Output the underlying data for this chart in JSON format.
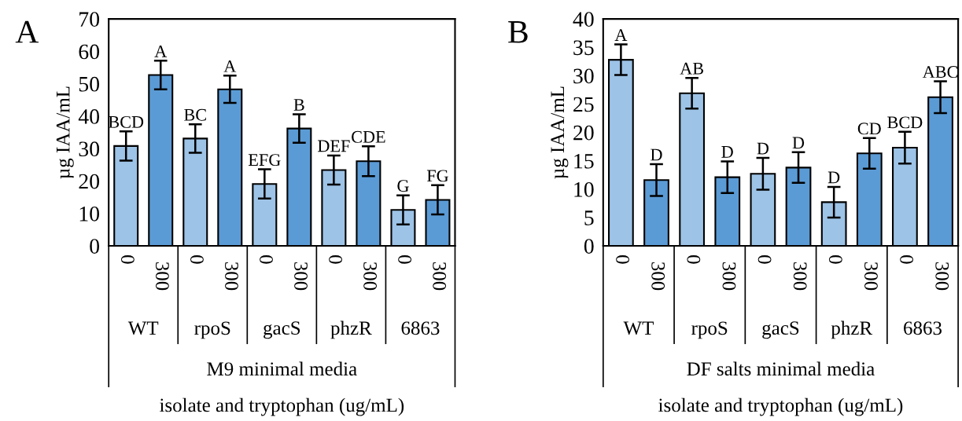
{
  "chart_data": [
    {
      "type": "bar",
      "title": "A",
      "ylabel": "µg IAA/mL",
      "xlabel": "isolate and tryptophan (ug/mL)",
      "categories": [
        "0",
        "300",
        "0",
        "300",
        "0",
        "300",
        "0",
        "300",
        "0",
        "300"
      ],
      "values": [
        30.8,
        52.7,
        33.1,
        48.3,
        19.1,
        36.2,
        23.4,
        26.1,
        11.1,
        14.2
      ],
      "errors": [
        4.5,
        4.4,
        4.4,
        4.2,
        4.5,
        4.4,
        4.5,
        4.6,
        4.5,
        4.5
      ],
      "colors": [
        "#9dc3e6",
        "#5b9bd5",
        "#9dc3e6",
        "#5b9bd5",
        "#9dc3e6",
        "#5b9bd5",
        "#9dc3e6",
        "#5b9bd5",
        "#9dc3e6",
        "#5b9bd5"
      ],
      "value_labels": [
        "BCD",
        "A",
        "BC",
        "A",
        "EFG",
        "B",
        "DEF",
        "CDE",
        "G",
        "FG"
      ],
      "annotations": [
        "WT",
        "rpoS",
        "gacS",
        "phzR",
        "6863",
        "M9 minimal media"
      ],
      "ylim": [
        0,
        70
      ],
      "yticks": [
        0,
        10,
        20,
        30,
        40,
        50,
        60,
        70
      ],
      "grid": false,
      "legend": false
    },
    {
      "type": "bar",
      "title": "B",
      "ylabel": "µg IAA/mL",
      "xlabel": "isolate and tryptophan (ug/mL)",
      "categories": [
        "0",
        "300",
        "0",
        "300",
        "0",
        "300",
        "0",
        "300",
        "0",
        "300"
      ],
      "values": [
        32.8,
        11.6,
        26.9,
        12.1,
        12.7,
        13.8,
        7.7,
        16.3,
        17.3,
        26.2
      ],
      "errors": [
        2.7,
        2.8,
        2.7,
        2.8,
        2.8,
        2.7,
        2.7,
        2.7,
        2.8,
        2.8
      ],
      "colors": [
        "#9dc3e6",
        "#5b9bd5",
        "#9dc3e6",
        "#5b9bd5",
        "#9dc3e6",
        "#5b9bd5",
        "#9dc3e6",
        "#5b9bd5",
        "#9dc3e6",
        "#5b9bd5"
      ],
      "value_labels": [
        "A",
        "D",
        "AB",
        "D",
        "D",
        "D",
        "D",
        "CD",
        "BCD",
        "ABC"
      ],
      "annotations": [
        "WT",
        "rpoS",
        "gacS",
        "phzR",
        "6863",
        "DF salts minimal media"
      ],
      "ylim": [
        0,
        40
      ],
      "yticks": [
        0,
        5,
        10,
        15,
        20,
        25,
        30,
        35,
        40
      ],
      "grid": false,
      "legend": false
    }
  ]
}
